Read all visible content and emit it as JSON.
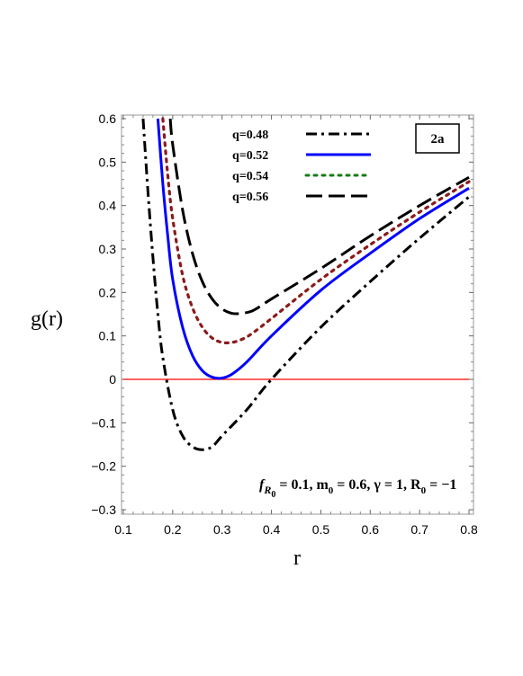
{
  "chart_data": {
    "type": "line",
    "xlabel": "r",
    "ylabel": "g(r)",
    "xlim": [
      0.1,
      0.8
    ],
    "ylim": [
      -0.3,
      0.6
    ],
    "x_ticks": [
      "0.1",
      "0.2",
      "0.3",
      "0.4",
      "0.5",
      "0.6",
      "0.7",
      "0.8"
    ],
    "y_ticks": [
      "-0.3",
      "-0.2",
      "-0.1",
      "0",
      "0.1",
      "0.2",
      "0.3",
      "0.4",
      "0.5",
      "0.6"
    ],
    "panel_label": "2a",
    "annotation": {
      "f": "f",
      "sub_r": "R",
      "sub_0": "0",
      "eq1": " = 0.1, m",
      "sub_m": "0",
      "eq2": " = 0.6, γ = 1, R",
      "sub_R": "0",
      "eq3": " = −1"
    },
    "reference_line": {
      "y": 0,
      "color": "#ff0000"
    },
    "legend_position": "top-center",
    "series": [
      {
        "name": "q=0.48",
        "color": "#000000",
        "dash": "dashdot",
        "x": [
          0.14,
          0.15,
          0.16,
          0.17,
          0.18,
          0.2,
          0.22,
          0.24,
          0.26,
          0.28,
          0.3,
          0.35,
          0.4,
          0.5,
          0.6,
          0.7,
          0.8
        ],
        "y": [
          0.6,
          0.43,
          0.28,
          0.15,
          0.05,
          -0.07,
          -0.13,
          -0.155,
          -0.162,
          -0.155,
          -0.13,
          -0.07,
          0.0,
          0.12,
          0.225,
          0.325,
          0.42
        ]
      },
      {
        "name": "q=0.52",
        "color": "#0000ff",
        "dash": "solid",
        "x": [
          0.17,
          0.18,
          0.19,
          0.2,
          0.22,
          0.24,
          0.26,
          0.28,
          0.3,
          0.32,
          0.35,
          0.4,
          0.5,
          0.6,
          0.7,
          0.8
        ],
        "y": [
          0.6,
          0.45,
          0.33,
          0.23,
          0.12,
          0.055,
          0.02,
          0.005,
          0.003,
          0.012,
          0.04,
          0.1,
          0.205,
          0.29,
          0.37,
          0.44
        ]
      },
      {
        "name": "q=0.54",
        "color": "#8b1a1a",
        "dash": "dotted",
        "x": [
          0.18,
          0.19,
          0.2,
          0.22,
          0.24,
          0.26,
          0.28,
          0.3,
          0.32,
          0.34,
          0.36,
          0.4,
          0.5,
          0.6,
          0.7,
          0.8
        ],
        "y": [
          0.6,
          0.47,
          0.37,
          0.24,
          0.165,
          0.12,
          0.095,
          0.085,
          0.085,
          0.092,
          0.105,
          0.14,
          0.23,
          0.31,
          0.385,
          0.455
        ]
      },
      {
        "name": "q=0.56",
        "color": "#000000",
        "dash": "longdash",
        "x": [
          0.195,
          0.2,
          0.22,
          0.24,
          0.26,
          0.28,
          0.3,
          0.32,
          0.34,
          0.36,
          0.38,
          0.4,
          0.5,
          0.6,
          0.7,
          0.8
        ],
        "y": [
          0.6,
          0.54,
          0.39,
          0.29,
          0.225,
          0.185,
          0.162,
          0.152,
          0.152,
          0.157,
          0.17,
          0.185,
          0.255,
          0.33,
          0.4,
          0.465
        ]
      }
    ]
  }
}
